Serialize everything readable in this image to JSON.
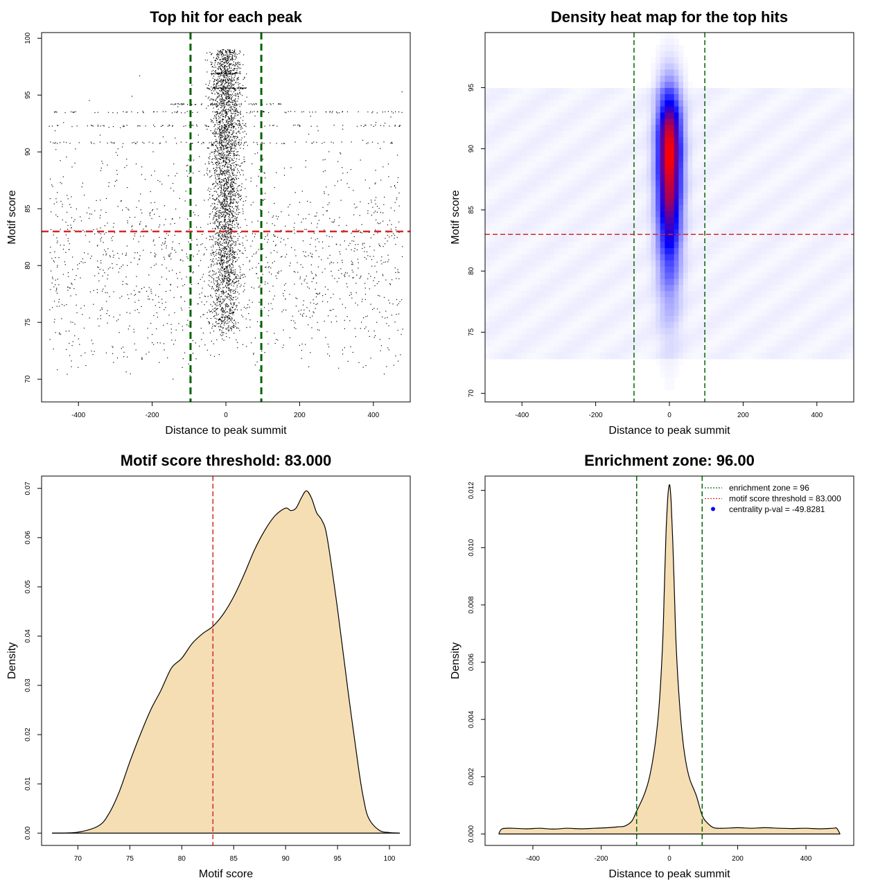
{
  "chart_data": [
    {
      "type": "scatter",
      "title": "Top hit for each peak",
      "xlabel": "Distance to peak summit",
      "ylabel": "Motif score",
      "xlim": [
        -500,
        500
      ],
      "ylim": [
        68,
        100.5
      ],
      "xticks": [
        -400,
        -200,
        0,
        200,
        400
      ],
      "yticks": [
        70,
        75,
        80,
        85,
        90,
        95,
        100
      ],
      "series": [
        {
          "points_description_values": {
            "background_x_range": [
              -480,
              480
            ],
            "background_y_range": [
              70,
              97
            ],
            "central_cluster_x_center": 0,
            "central_cluster_x_spread": 20,
            "central_cluster_y_range": [
              74,
              99
            ]
          }
        }
      ],
      "vlines": [
        -96,
        96
      ],
      "hline": 83,
      "colors": {
        "points": "#000000",
        "vlines": "#006400",
        "hline": "#d62728"
      }
    },
    {
      "type": "heatmap",
      "title": "Density heat map for the top hits",
      "xlabel": "Distance to peak summit",
      "ylabel": "Motif score",
      "xlim": [
        -500,
        500
      ],
      "ylim": [
        69.3,
        99.5
      ],
      "xticks": [
        -400,
        -200,
        0,
        200,
        400
      ],
      "yticks": [
        70,
        75,
        80,
        85,
        90,
        95
      ],
      "density_peak": {
        "x": 0,
        "y": 90
      },
      "vlines": [
        -96,
        96
      ],
      "hline": 83,
      "colors": {
        "low": "#ffffff",
        "mid": "#0000ff",
        "high": "#ff0000",
        "vlines": "#006400",
        "hline": "#d62728"
      }
    },
    {
      "type": "area",
      "title": "Motif score threshold: 83.000",
      "xlabel": "Motif score",
      "ylabel": "Density",
      "xlim": [
        66.5,
        102
      ],
      "ylim": [
        -0.0025,
        0.0725
      ],
      "xticks": [
        70,
        75,
        80,
        85,
        90,
        95,
        100
      ],
      "yticks": [
        0.0,
        0.01,
        0.02,
        0.03,
        0.04,
        0.05,
        0.06,
        0.07
      ],
      "ytick_labels": [
        "0.00",
        "0.01",
        "0.02",
        "0.03",
        "0.04",
        "0.05",
        "0.06",
        "0.07"
      ],
      "x": [
        67.5,
        70,
        72,
        73,
        74,
        75,
        76,
        77,
        78,
        79,
        80,
        81,
        82,
        83,
        84,
        85,
        86,
        87,
        88,
        89,
        90,
        90.5,
        91,
        91.5,
        92,
        92.5,
        93,
        93.5,
        94,
        95,
        96,
        97,
        97.5,
        98,
        99,
        100,
        101
      ],
      "y": [
        0,
        0.0002,
        0.0015,
        0.004,
        0.0085,
        0.0145,
        0.02,
        0.025,
        0.029,
        0.0335,
        0.0355,
        0.0385,
        0.0405,
        0.042,
        0.0445,
        0.048,
        0.0525,
        0.0575,
        0.0615,
        0.0645,
        0.066,
        0.0655,
        0.066,
        0.068,
        0.0695,
        0.068,
        0.065,
        0.0635,
        0.06,
        0.0455,
        0.029,
        0.0135,
        0.007,
        0.003,
        0.0006,
        0.0001,
        0
      ],
      "vline": 83,
      "colors": {
        "fill": "#f5deb3",
        "line": "#000000",
        "vline": "#d62728"
      }
    },
    {
      "type": "area",
      "title": "Enrichment zone: 96.00",
      "xlabel": "Distance to peak summit",
      "ylabel": "Density",
      "xlim": [
        -540,
        540
      ],
      "ylim": [
        -0.0004,
        0.0125
      ],
      "xticks": [
        -400,
        -200,
        0,
        200,
        400
      ],
      "yticks": [
        0.0,
        0.002,
        0.004,
        0.006,
        0.008,
        0.01,
        0.012
      ],
      "ytick_labels": [
        "0.000",
        "0.002",
        "0.004",
        "0.006",
        "0.008",
        "0.010",
        "0.012"
      ],
      "x": [
        -500,
        -490,
        -460,
        -420,
        -380,
        -340,
        -300,
        -260,
        -220,
        -180,
        -150,
        -130,
        -110,
        -96,
        -80,
        -70,
        -60,
        -50,
        -40,
        -30,
        -20,
        -15,
        -10,
        -5,
        -2,
        0,
        2,
        5,
        10,
        15,
        20,
        30,
        40,
        50,
        60,
        70,
        80,
        96,
        110,
        130,
        160,
        200,
        240,
        280,
        320,
        360,
        400,
        440,
        480,
        490,
        500
      ],
      "y": [
        0,
        0.00018,
        0.0002,
        0.00018,
        0.0002,
        0.00017,
        0.0002,
        0.00018,
        0.0002,
        0.00022,
        0.00025,
        0.00028,
        0.00045,
        0.0008,
        0.0012,
        0.0015,
        0.0019,
        0.0025,
        0.0033,
        0.0045,
        0.0066,
        0.0085,
        0.0105,
        0.0117,
        0.0121,
        0.0122,
        0.0121,
        0.0116,
        0.0102,
        0.0083,
        0.0065,
        0.0045,
        0.0032,
        0.0024,
        0.0019,
        0.0016,
        0.0013,
        0.00065,
        0.0004,
        0.00022,
        0.0002,
        0.00022,
        0.0002,
        0.00022,
        0.0002,
        0.00019,
        0.0002,
        0.00018,
        0.0002,
        0.0002,
        0
      ],
      "vlines": [
        -96,
        96
      ],
      "legend": {
        "placement": "top-right",
        "entries": [
          {
            "label": "enrichment zone = 96",
            "style": "dotted-line",
            "color": "#006400"
          },
          {
            "label": "motif score threshold = 83.000",
            "style": "dotted-line",
            "color": "#d62728"
          },
          {
            "label": "centrality p-val = -49.8281",
            "style": "dot",
            "color": "#0000ff"
          }
        ]
      },
      "colors": {
        "fill": "#f5deb3",
        "line": "#000000",
        "vlines": "#006400"
      }
    }
  ]
}
